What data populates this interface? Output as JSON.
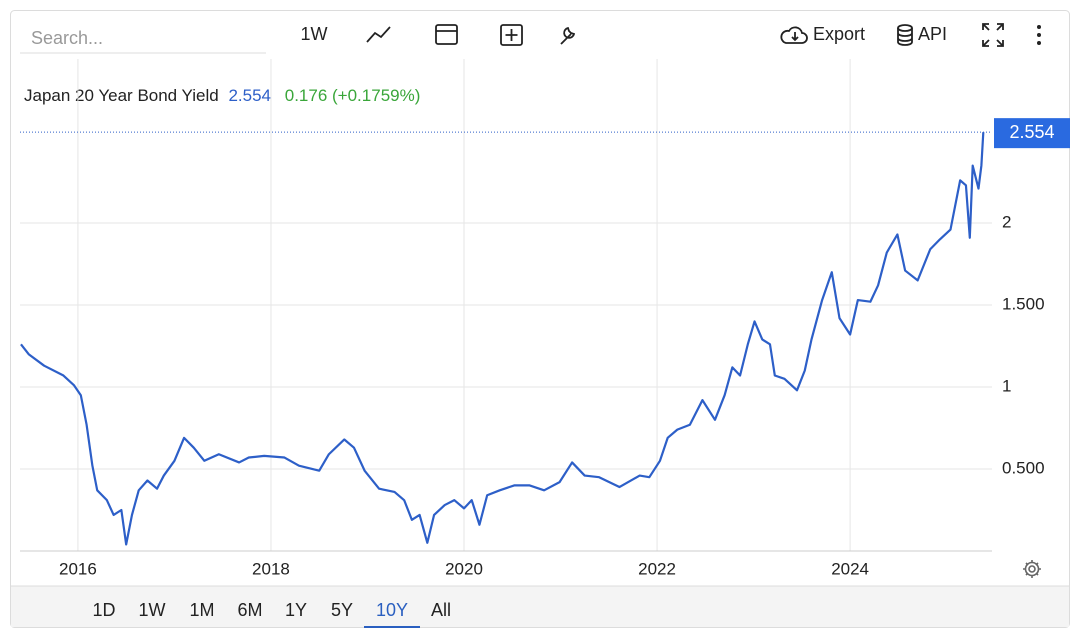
{
  "toolbar": {
    "search_placeholder": "Search...",
    "interval": "1W",
    "export": "Export",
    "api": "API"
  },
  "chart_data": {
    "type": "line",
    "title": "Japan 20 Year Bond Yield",
    "change_text": "0.176 (+0.1759%)",
    "series": [
      {
        "color": "#2d5fc8",
        "x": [
          2015.41,
          2015.49,
          2015.65,
          2015.85,
          2015.96,
          2016.03,
          2016.09,
          2016.15,
          2016.2,
          2016.3,
          2016.37,
          2016.45,
          2016.5,
          2016.56,
          2016.63,
          2016.72,
          2016.82,
          2016.89,
          2017.0,
          2017.1,
          2017.2,
          2017.31,
          2017.46,
          2017.67,
          2017.77,
          2017.93,
          2018.14,
          2018.29,
          2018.5,
          2018.6,
          2018.76,
          2018.86,
          2018.97,
          2019.12,
          2019.28,
          2019.38,
          2019.46,
          2019.54,
          2019.62,
          2019.69,
          2019.8,
          2019.9,
          2020.0,
          2020.08,
          2020.16,
          2020.24,
          2020.37,
          2020.52,
          2020.68,
          2020.83,
          2020.99,
          2021.12,
          2021.25,
          2021.4,
          2021.61,
          2021.82,
          2021.92,
          2022.03,
          2022.11,
          2022.21,
          2022.34,
          2022.47,
          2022.6,
          2022.7,
          2022.78,
          2022.86,
          2022.94,
          2023.01,
          2023.09,
          2023.17,
          2023.22,
          2023.32,
          2023.45,
          2023.53,
          2023.6,
          2023.71,
          2023.81,
          2023.89,
          2024.0,
          2024.08,
          2024.21,
          2024.29,
          2024.38,
          2024.49,
          2024.57,
          2024.7,
          2024.83,
          2024.93,
          2025.04,
          2025.14,
          2025.2,
          2025.24,
          2025.27,
          2025.33,
          2025.36,
          2025.38
        ],
        "values": [
          1.26,
          1.2,
          1.13,
          1.07,
          1.01,
          0.95,
          0.77,
          0.52,
          0.37,
          0.31,
          0.22,
          0.25,
          0.04,
          0.22,
          0.37,
          0.43,
          0.38,
          0.46,
          0.55,
          0.69,
          0.63,
          0.55,
          0.59,
          0.54,
          0.57,
          0.58,
          0.57,
          0.52,
          0.49,
          0.59,
          0.68,
          0.63,
          0.49,
          0.38,
          0.36,
          0.31,
          0.19,
          0.22,
          0.05,
          0.22,
          0.28,
          0.31,
          0.26,
          0.31,
          0.16,
          0.34,
          0.37,
          0.4,
          0.4,
          0.37,
          0.42,
          0.54,
          0.46,
          0.45,
          0.39,
          0.46,
          0.45,
          0.55,
          0.69,
          0.74,
          0.77,
          0.92,
          0.8,
          0.95,
          1.12,
          1.07,
          1.26,
          1.4,
          1.29,
          1.26,
          1.07,
          1.05,
          0.98,
          1.1,
          1.29,
          1.53,
          1.7,
          1.42,
          1.32,
          1.53,
          1.52,
          1.62,
          1.82,
          1.93,
          1.71,
          1.65,
          1.84,
          1.9,
          1.96,
          2.26,
          2.23,
          1.91,
          2.35,
          2.21,
          2.35,
          2.554
        ]
      }
    ],
    "xlim": [
      2015.4,
      2025.47
    ],
    "xticks": [
      2016,
      2018,
      2020,
      2022,
      2024
    ],
    "ylim": [
      0,
      3
    ],
    "yticks": [
      {
        "value": 0.5,
        "label": "0.500"
      },
      1,
      {
        "value": 1.5,
        "label": "1.500"
      },
      2
    ],
    "grid": true
  },
  "range_buttons": [
    "1D",
    "1W",
    "1M",
    "6M",
    "1Y",
    "5Y",
    "10Y",
    "All"
  ],
  "active_range_index": 6
}
